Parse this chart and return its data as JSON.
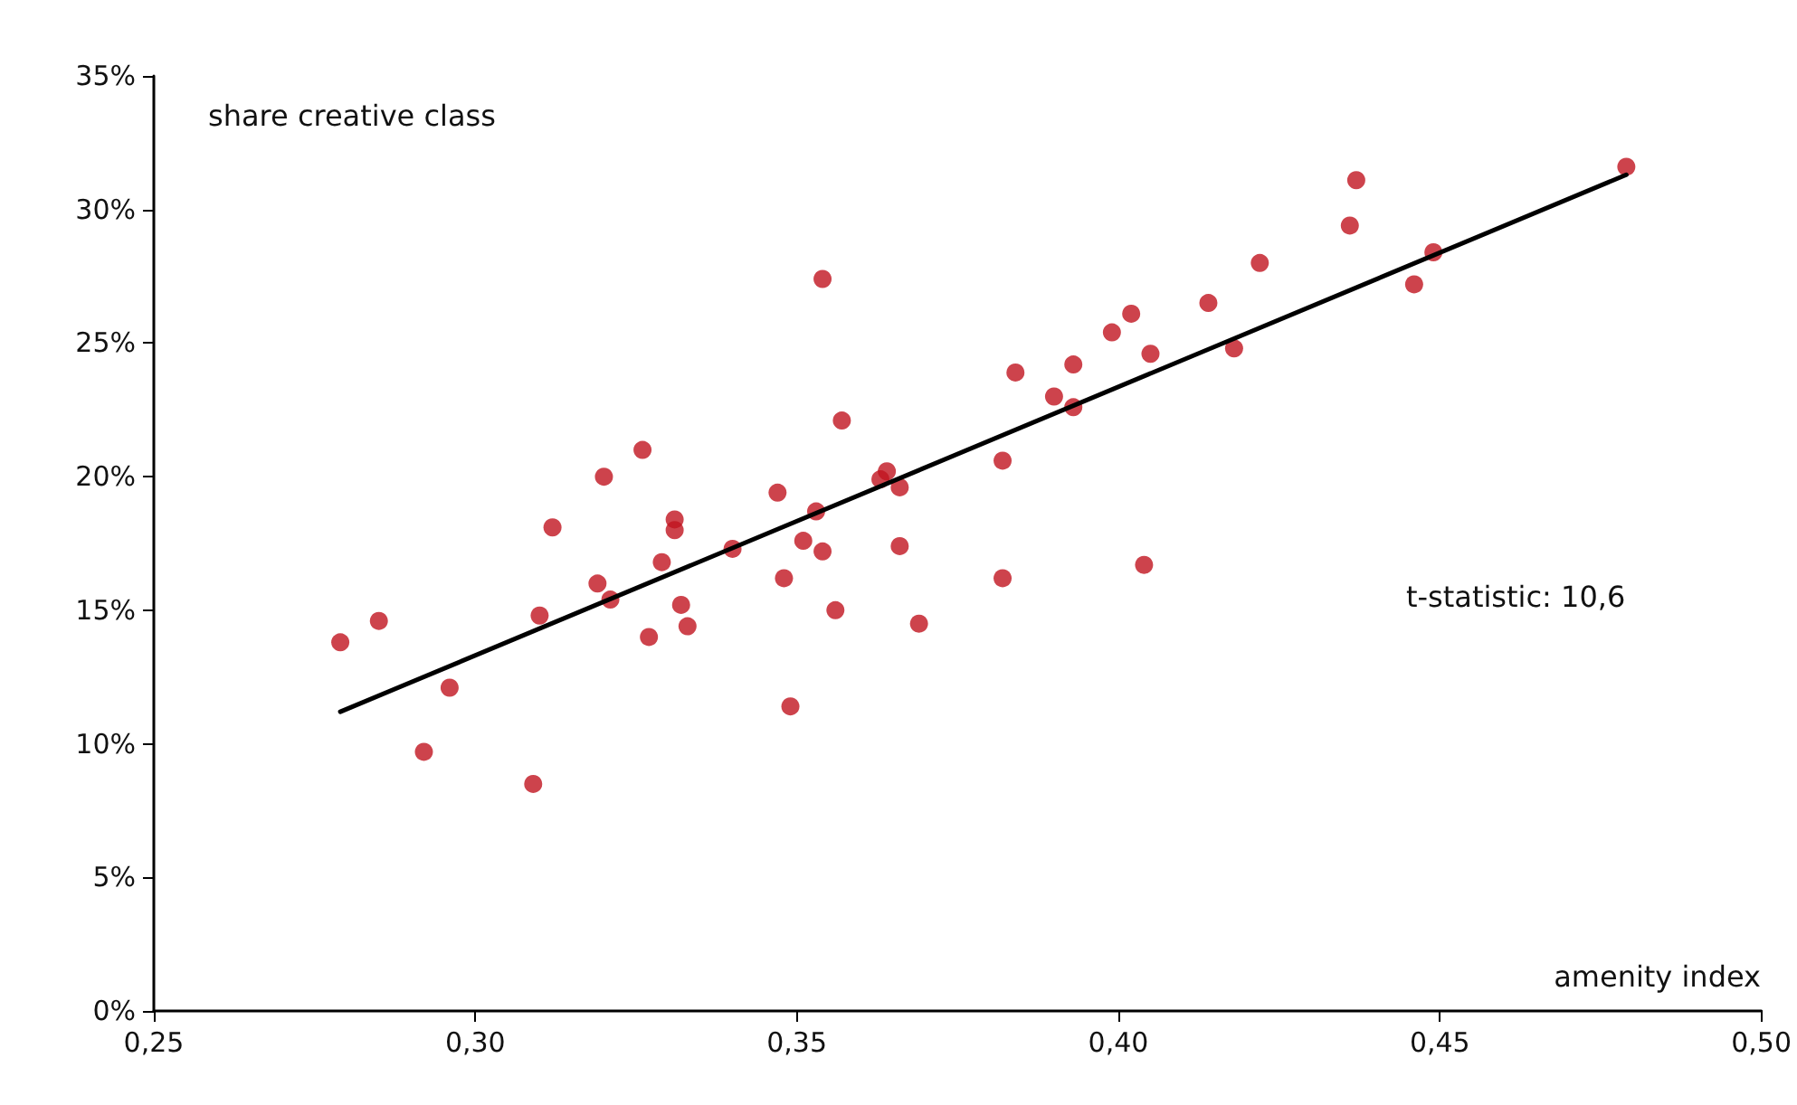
{
  "chart_data": {
    "type": "scatter",
    "xlabel": "amenity index",
    "ylabel": "share creative class",
    "annotations": [
      "t-statistic: 10,6"
    ],
    "xlim": [
      0.25,
      0.5
    ],
    "xticks": [
      {
        "value": 0.25,
        "label": "0,25"
      },
      {
        "value": 0.3,
        "label": "0,30"
      },
      {
        "value": 0.35,
        "label": "0,35"
      },
      {
        "value": 0.4,
        "label": "0,40"
      },
      {
        "value": 0.45,
        "label": "0,45"
      },
      {
        "value": 0.5,
        "label": "0,50"
      }
    ],
    "ylim": [
      0,
      35
    ],
    "yticks": [
      {
        "value": 0,
        "label": "0%"
      },
      {
        "value": 5,
        "label": "5%"
      },
      {
        "value": 10,
        "label": "10%"
      },
      {
        "value": 15,
        "label": "15%"
      },
      {
        "value": 20,
        "label": "20%"
      },
      {
        "value": 25,
        "label": "25%"
      },
      {
        "value": 30,
        "label": "30%"
      },
      {
        "value": 35,
        "label": "35%"
      }
    ],
    "grid": false,
    "series": [
      {
        "type": "scatter",
        "color": "#c0141f",
        "marker": "circle",
        "x": [
          0.279,
          0.285,
          0.296,
          0.292,
          0.309,
          0.31,
          0.312,
          0.32,
          0.319,
          0.321,
          0.326,
          0.327,
          0.329,
          0.331,
          0.331,
          0.332,
          0.333,
          0.34,
          0.347,
          0.348,
          0.349,
          0.351,
          0.353,
          0.354,
          0.354,
          0.357,
          0.356,
          0.363,
          0.364,
          0.366,
          0.366,
          0.369,
          0.382,
          0.382,
          0.384,
          0.39,
          0.393,
          0.393,
          0.399,
          0.402,
          0.405,
          0.404,
          0.414,
          0.418,
          0.422,
          0.436,
          0.437,
          0.446,
          0.449,
          0.479
        ],
        "values": [
          13.8,
          14.6,
          12.1,
          9.7,
          8.5,
          14.8,
          18.1,
          20.0,
          16.0,
          15.4,
          21.0,
          14.0,
          16.8,
          18.4,
          18.0,
          15.2,
          14.4,
          17.3,
          19.4,
          16.2,
          11.4,
          17.6,
          18.7,
          17.2,
          27.4,
          22.1,
          15.0,
          19.9,
          20.2,
          19.6,
          17.4,
          14.5,
          20.6,
          16.2,
          23.9,
          23.0,
          24.2,
          22.6,
          25.4,
          26.1,
          24.6,
          16.7,
          26.5,
          24.8,
          28.0,
          29.4,
          31.1,
          27.2,
          28.4,
          31.6
        ]
      },
      {
        "type": "line",
        "color": "#000000",
        "marker": "none",
        "line_style": "solid",
        "x": [
          0.279,
          0.479
        ],
        "values": [
          11.2,
          31.3
        ]
      }
    ]
  }
}
